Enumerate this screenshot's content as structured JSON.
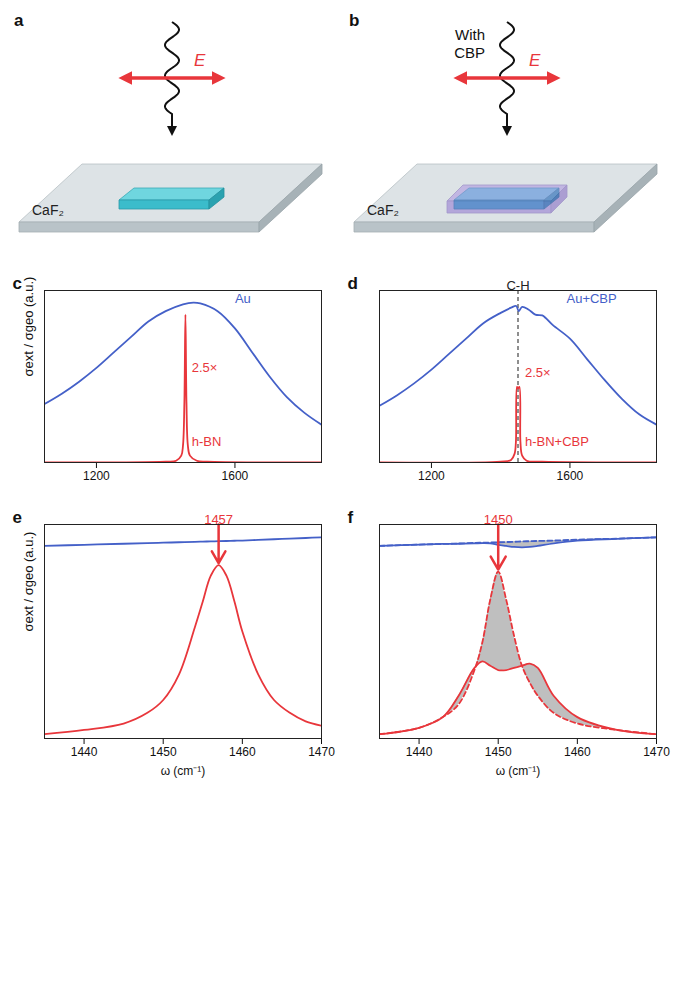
{
  "chart_data": [
    {
      "letter": "c",
      "type": "line",
      "y_label": "σext / σgeo (a.u.)",
      "xlim": [
        1050,
        1850
      ],
      "xticks": [
        1200,
        1600
      ],
      "ylim": [
        0,
        1
      ],
      "tick_labels": "x",
      "series": [
        {
          "color": "#4460c8",
          "line_style": "solid",
          "x": [
            1050,
            1100,
            1150,
            1200,
            1250,
            1300,
            1350,
            1400,
            1450,
            1480,
            1500,
            1550,
            1600,
            1650,
            1700,
            1750,
            1800,
            1850
          ],
          "values": [
            0.34,
            0.4,
            0.47,
            0.55,
            0.64,
            0.73,
            0.82,
            0.88,
            0.92,
            0.93,
            0.925,
            0.88,
            0.78,
            0.64,
            0.5,
            0.38,
            0.29,
            0.22
          ]
        },
        {
          "color": "#e8363b",
          "line_style": "solid",
          "x": [
            1050,
            1400,
            1430,
            1445,
            1450,
            1454,
            1457,
            1460,
            1464,
            1470,
            1490,
            1520,
            1850
          ],
          "values": [
            0,
            0.005,
            0.01,
            0.04,
            0.1,
            0.35,
            0.86,
            0.35,
            0.1,
            0.04,
            0.01,
            0.005,
            0
          ]
        }
      ],
      "annotations": [
        {
          "text": "Au",
          "x": 1600,
          "y": 0.95,
          "color": "#4460c8"
        },
        {
          "text": "2.5×",
          "x": 1475,
          "y": 0.55,
          "color": "#e8363b"
        },
        {
          "text": "h-BN",
          "x": 1475,
          "y": 0.12,
          "color": "#e8363b"
        }
      ]
    },
    {
      "letter": "d",
      "type": "line",
      "xlim": [
        1050,
        1850
      ],
      "xticks": [
        1200,
        1600
      ],
      "ylim": [
        0,
        1
      ],
      "tick_labels": "x",
      "series": [
        {
          "color": "#4460c8",
          "line_style": "solid",
          "x": [
            1050,
            1100,
            1150,
            1200,
            1250,
            1300,
            1350,
            1400,
            1430,
            1445,
            1452,
            1462,
            1480,
            1500,
            1520,
            1530,
            1550,
            1600,
            1650,
            1700,
            1750,
            1800,
            1850
          ],
          "values": [
            0.33,
            0.39,
            0.46,
            0.54,
            0.63,
            0.72,
            0.81,
            0.87,
            0.9,
            0.91,
            0.88,
            0.905,
            0.89,
            0.86,
            0.855,
            0.84,
            0.8,
            0.72,
            0.6,
            0.48,
            0.37,
            0.28,
            0.22
          ]
        },
        {
          "color": "#e8363b",
          "line_style": "solid",
          "x": [
            1050,
            1400,
            1430,
            1440,
            1444,
            1447,
            1450,
            1454,
            1457,
            1462,
            1475,
            1520,
            1850
          ],
          "values": [
            0,
            0.005,
            0.015,
            0.05,
            0.12,
            0.44,
            0.43,
            0.44,
            0.12,
            0.04,
            0.01,
            0.005,
            0
          ]
        }
      ],
      "reference_lines": [
        {
          "x": 1450,
          "label": "C-H",
          "line_style": "dashed"
        }
      ],
      "annotations": [
        {
          "text": "Au+CBP",
          "x": 1590,
          "y": 0.95,
          "color": "#4460c8"
        },
        {
          "text": "2.5×",
          "x": 1470,
          "y": 0.52,
          "color": "#e8363b"
        },
        {
          "text": "h-BN+CBP",
          "x": 1470,
          "y": 0.12,
          "color": "#e8363b"
        }
      ]
    },
    {
      "letter": "e",
      "type": "line",
      "y_label": "σext / σgeo (a.u.)",
      "x_label": "ω (cm⁻¹)",
      "xlim": [
        1435,
        1470
      ],
      "xticks": [
        1440,
        1450,
        1460,
        1470
      ],
      "ylim": [
        0,
        1
      ],
      "tick_labels": "x",
      "x": [
        1435,
        1440,
        1445,
        1448,
        1450,
        1452,
        1454,
        1455,
        1456,
        1457,
        1458,
        1459,
        1460,
        1462,
        1464,
        1466,
        1468,
        1470
      ],
      "series": [
        {
          "color": "#4460c8",
          "line_style": "solid",
          "values": [
            0.9,
            0.905,
            0.91,
            0.913,
            0.915,
            0.917,
            0.919,
            0.92,
            0.921,
            0.922,
            0.923,
            0.924,
            0.925,
            0.928,
            0.931,
            0.934,
            0.937,
            0.94
          ]
        },
        {
          "color": "#e8363b",
          "line_style": "solid",
          "values": [
            0.02,
            0.04,
            0.07,
            0.12,
            0.18,
            0.3,
            0.52,
            0.64,
            0.76,
            0.81,
            0.76,
            0.64,
            0.5,
            0.3,
            0.18,
            0.12,
            0.08,
            0.06
          ]
        }
      ],
      "annotations": [
        {
          "text": "1457",
          "x": 1457,
          "y": 0.81,
          "color": "#e8363b",
          "arrow": true
        }
      ]
    },
    {
      "letter": "f",
      "type": "line",
      "x_label": "ω (cm⁻¹)",
      "xlim": [
        1435,
        1470
      ],
      "xticks": [
        1440,
        1450,
        1460,
        1470
      ],
      "ylim": [
        0,
        1
      ],
      "tick_labels": "x",
      "x": [
        1435,
        1440,
        1443,
        1445,
        1447,
        1448,
        1449,
        1450,
        1451,
        1452,
        1453,
        1454,
        1455,
        1457,
        1460,
        1465,
        1470
      ],
      "series": [
        {
          "color": "#4460c8",
          "line_style": "solid",
          "values": [
            0.9,
            0.906,
            0.909,
            0.91,
            0.912,
            0.913,
            0.912,
            0.905,
            0.9,
            0.895,
            0.893,
            0.895,
            0.9,
            0.912,
            0.925,
            0.933,
            0.94
          ]
        },
        {
          "color": "#4460c8",
          "line_style": "dashed",
          "values": [
            0.9,
            0.906,
            0.909,
            0.911,
            0.914,
            0.915,
            0.916,
            0.917,
            0.918,
            0.919,
            0.921,
            0.922,
            0.923,
            0.925,
            0.929,
            0.934,
            0.94
          ]
        },
        {
          "color": "#e8363b",
          "line_style": "solid",
          "values": [
            0.02,
            0.05,
            0.1,
            0.2,
            0.33,
            0.36,
            0.34,
            0.32,
            0.32,
            0.33,
            0.34,
            0.35,
            0.33,
            0.2,
            0.1,
            0.04,
            0.02
          ]
        },
        {
          "color": "#e8363b",
          "line_style": "dashed",
          "values": [
            0.02,
            0.05,
            0.1,
            0.16,
            0.32,
            0.45,
            0.65,
            0.78,
            0.65,
            0.48,
            0.34,
            0.26,
            0.2,
            0.12,
            0.07,
            0.04,
            0.02
          ]
        }
      ],
      "annotations": [
        {
          "text": "1450",
          "x": 1450,
          "y": 0.78,
          "color": "#e8363b",
          "arrow": true
        }
      ]
    }
  ],
  "schematics": [
    {
      "letter": "a",
      "field_label": "E",
      "substrate": "CaF₂"
    },
    {
      "letter": "b",
      "field_label": "E",
      "substrate": "CaF₂",
      "note": "With CBP"
    }
  ]
}
